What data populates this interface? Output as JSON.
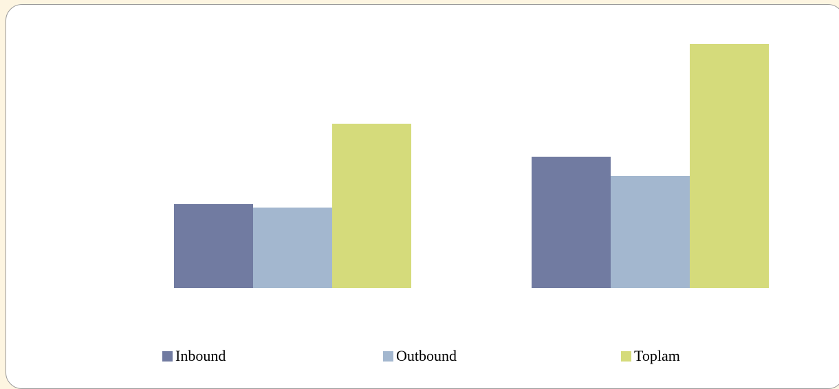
{
  "chart_data": {
    "type": "bar",
    "categories": [
      "",
      ""
    ],
    "series": [
      {
        "name": "Inbound",
        "values": [
          122,
          191
        ],
        "color": "#717ba1"
      },
      {
        "name": "Outbound",
        "values": [
          117,
          163
        ],
        "color": "#a3b7cf"
      },
      {
        "name": "Toplam",
        "values": [
          239,
          355
        ],
        "color": "#d5db7b"
      }
    ],
    "ylim": [
      0,
      355
    ],
    "title": "",
    "xlabel": "",
    "ylabel": "",
    "grid": false,
    "legend": "bottom"
  },
  "legend": {
    "items": [
      {
        "label": "Inbound",
        "color": "#717ba1"
      },
      {
        "label": "Outbound",
        "color": "#a3b7cf"
      },
      {
        "label": "Toplam",
        "color": "#d5db7b"
      }
    ]
  }
}
